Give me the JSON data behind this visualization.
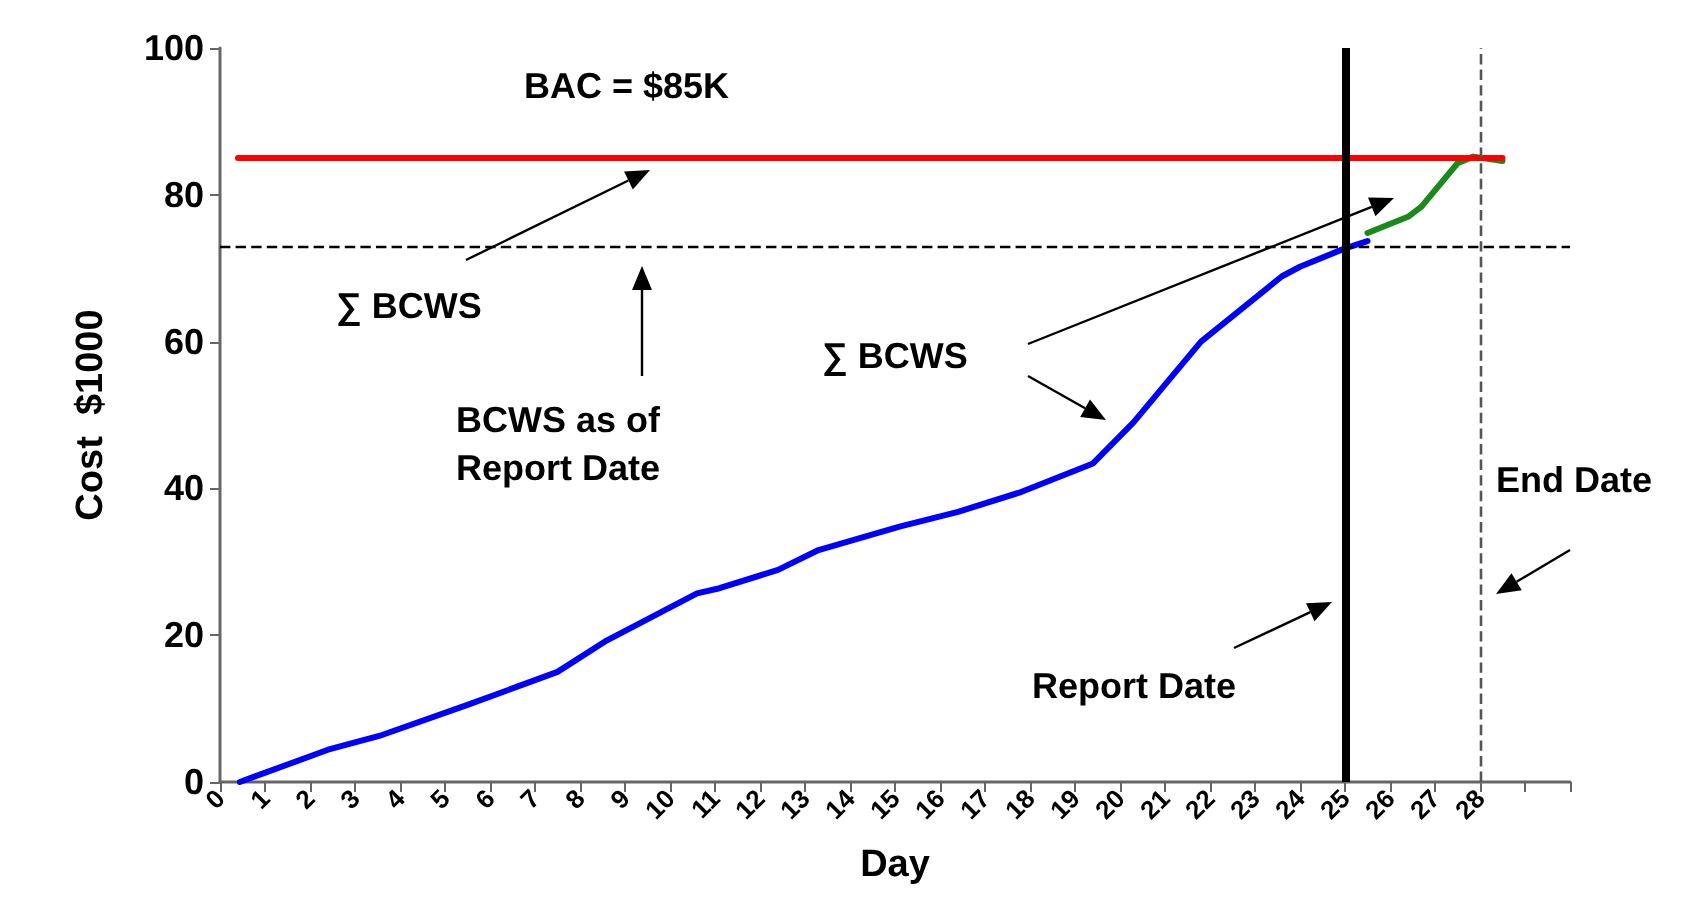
{
  "chart_data": {
    "type": "line",
    "xlabel": "Day",
    "ylabel": "Cost  $1000",
    "xlim": [
      0,
      30
    ],
    "xticks": [
      0,
      1,
      2,
      3,
      4,
      5,
      6,
      7,
      8,
      9,
      10,
      11,
      12,
      13,
      14,
      15,
      16,
      17,
      18,
      19,
      20,
      21,
      22,
      23,
      24,
      25,
      26,
      27,
      28,
      {
        "value": 29,
        "label": null
      },
      {
        "value": 30,
        "label": null
      }
    ],
    "ylim": [
      0,
      100
    ],
    "yticks": [
      0,
      20,
      40,
      60,
      80,
      100
    ],
    "grid": false,
    "marker": "none",
    "line_style": "solid",
    "series": [
      {
        "color": "#0000ff",
        "x": [
          0.44,
          2.4,
          3.6,
          5.5,
          7.5,
          8.6,
          10.6,
          11.1,
          12.4,
          13.3,
          15.1,
          16.4,
          17.8,
          19.4,
          20.3,
          21.8,
          23.6,
          24.0,
          25.0,
          25.5
        ],
        "values": [
          0,
          4.4,
          6.4,
          10.5,
          15.0,
          19.3,
          25.7,
          26.4,
          28.9,
          31.6,
          34.8,
          36.8,
          39.5,
          43.4,
          49,
          60,
          68.9,
          70.2,
          72.7,
          73.7
        ]
      },
      {
        "color": "#1a8a1a",
        "x": [
          25.5,
          26.4,
          26.7,
          27.5,
          27.85,
          28.5
        ],
        "values": [
          74.8,
          77.0,
          78.4,
          84.3,
          85.2,
          84.6
        ]
      },
      {
        "color": "#ff0000",
        "x": [
          0.4,
          28.5
        ],
        "values": [
          85,
          85
        ]
      }
    ],
    "ref_lines": [
      {
        "axis": "y",
        "value": 73,
        "label": null,
        "color": "#000000",
        "line_style": "dashed"
      },
      {
        "axis": "x",
        "value": 25,
        "label": null,
        "color": "#000000",
        "line_style": "solid"
      },
      {
        "axis": "x",
        "value": 28,
        "label": null,
        "color": "#555555",
        "line_style": "dashed"
      }
    ],
    "annotations": [
      "BAC = $85K",
      "∑ BCWS",
      "BCWS as of\nReport Date",
      "∑ BCWS",
      "Report Date",
      "End Date"
    ]
  }
}
